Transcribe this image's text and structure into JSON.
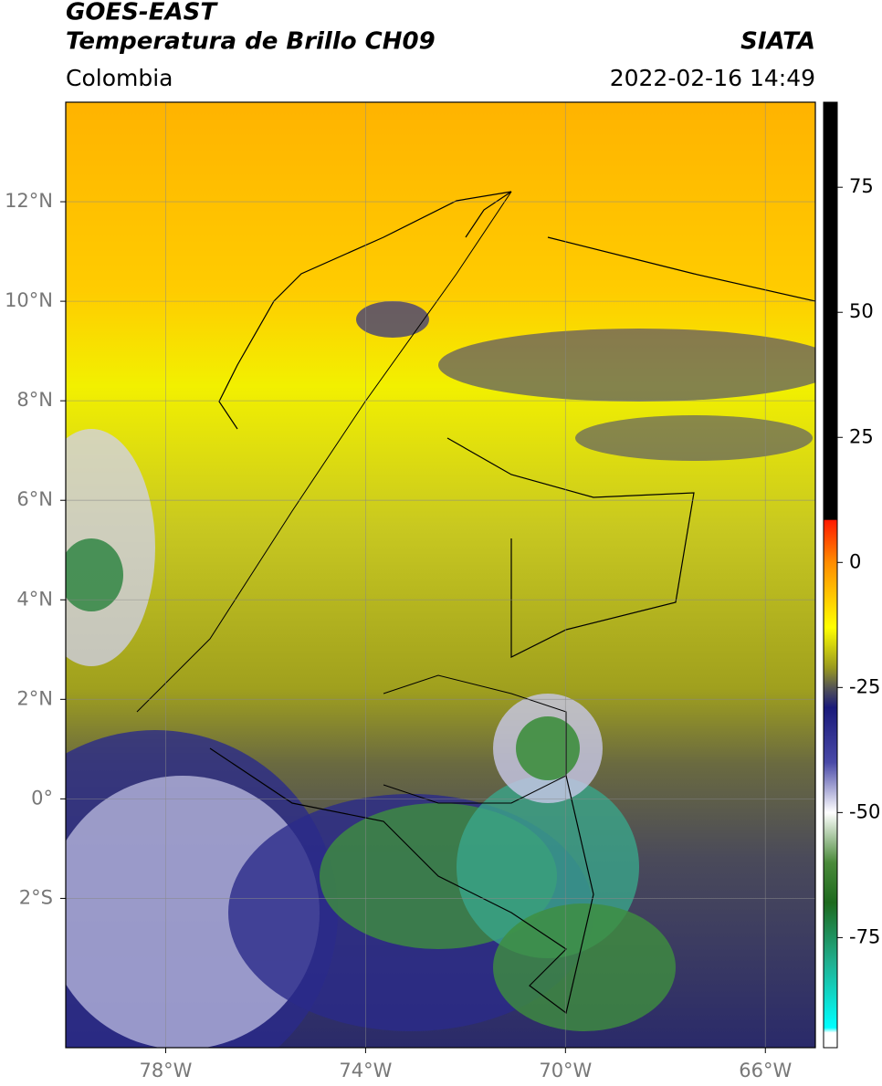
{
  "header": {
    "title": "GOES-EAST",
    "subtitle": "Temperatura de Brillo CH09",
    "source": "SIATA",
    "region": "Colombia",
    "datetime": "2022-02-16 14:49"
  },
  "map": {
    "xlim": [
      -80,
      -65
    ],
    "ylim": [
      -5,
      14
    ],
    "xticks": [
      {
        "value": -78,
        "label": "78°W"
      },
      {
        "value": -74,
        "label": "74°W"
      },
      {
        "value": -70,
        "label": "70°W"
      },
      {
        "value": -66,
        "label": "66°W"
      }
    ],
    "yticks": [
      {
        "value": 12,
        "label": "12°N"
      },
      {
        "value": 10,
        "label": "10°N"
      },
      {
        "value": 8,
        "label": "8°N"
      },
      {
        "value": 6,
        "label": "6°N"
      },
      {
        "value": 4,
        "label": "4°N"
      },
      {
        "value": 2,
        "label": "2°N"
      },
      {
        "value": 0,
        "label": "0°"
      },
      {
        "value": -2,
        "label": "2°S"
      }
    ],
    "grid": true
  },
  "colorbar": {
    "clim": [
      -97,
      92
    ],
    "ticks": [
      75,
      50,
      25,
      0,
      -25,
      -50,
      -75
    ],
    "colormap": [
      {
        "value": 92,
        "color": "#000000"
      },
      {
        "value": 8.6,
        "color": "#000000"
      },
      {
        "value": 8.4,
        "color": "#ff1a00"
      },
      {
        "value": 0,
        "color": "#ff8c00"
      },
      {
        "value": -13,
        "color": "#ffff00"
      },
      {
        "value": -21,
        "color": "#9a9a1e"
      },
      {
        "value": -25,
        "color": "#555555"
      },
      {
        "value": -29,
        "color": "#1a1a7a"
      },
      {
        "value": -40,
        "color": "#4a4aa8"
      },
      {
        "value": -50,
        "color": "#ffffff"
      },
      {
        "value": -60,
        "color": "#4a8a3a"
      },
      {
        "value": -68,
        "color": "#1e6a1e"
      },
      {
        "value": -80,
        "color": "#20b090"
      },
      {
        "value": -93,
        "color": "#00ffff"
      },
      {
        "value": -94,
        "color": "#ffffff"
      },
      {
        "value": -97,
        "color": "#ffffff"
      }
    ]
  }
}
